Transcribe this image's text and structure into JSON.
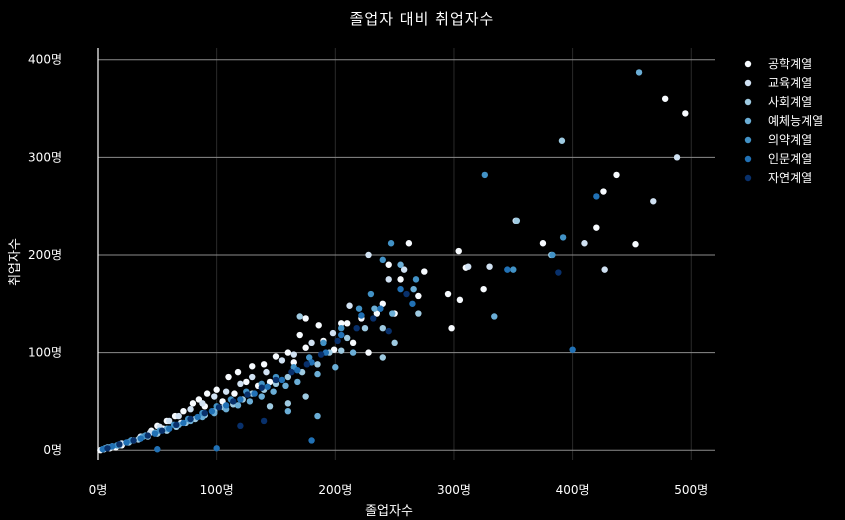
{
  "chart_data": {
    "type": "scatter",
    "title": "졸업자 대비 취업자수",
    "xlabel": "졸업자수",
    "ylabel": "취업자수",
    "xlim": [
      0,
      520
    ],
    "ylim": [
      -10,
      412
    ],
    "x_ticks": [
      {
        "value": 0,
        "label": "0명"
      },
      {
        "value": 100,
        "label": "100명"
      },
      {
        "value": 200,
        "label": "200명"
      },
      {
        "value": 300,
        "label": "300명"
      },
      {
        "value": 400,
        "label": "400명"
      },
      {
        "value": 500,
        "label": "500명"
      }
    ],
    "y_ticks": [
      {
        "value": 0,
        "label": "0명"
      },
      {
        "value": 100,
        "label": "100명"
      },
      {
        "value": 200,
        "label": "200명"
      },
      {
        "value": 300,
        "label": "300명"
      },
      {
        "value": 400,
        "label": "400명"
      }
    ],
    "grid": true,
    "legend_position": "top-right",
    "series": [
      {
        "name": "공학계열",
        "color": "#f7fbff",
        "points": [
          [
            495,
            345
          ],
          [
            478,
            360
          ],
          [
            437,
            282
          ],
          [
            426,
            265
          ],
          [
            420,
            228
          ],
          [
            453,
            211
          ],
          [
            375,
            212
          ],
          [
            304,
            204
          ],
          [
            310,
            187
          ],
          [
            262,
            212
          ],
          [
            275,
            183
          ],
          [
            270,
            158
          ],
          [
            295,
            160
          ],
          [
            305,
            154
          ],
          [
            325,
            165
          ],
          [
            298,
            125
          ],
          [
            240,
            150
          ],
          [
            235,
            140
          ],
          [
            222,
            135
          ],
          [
            250,
            140
          ],
          [
            215,
            110
          ],
          [
            199,
            103
          ],
          [
            186,
            128
          ],
          [
            170,
            118
          ],
          [
            160,
            100
          ],
          [
            150,
            96
          ],
          [
            140,
            88
          ],
          [
            130,
            86
          ],
          [
            125,
            70
          ],
          [
            118,
            80
          ],
          [
            110,
            75
          ],
          [
            100,
            62
          ],
          [
            92,
            58
          ],
          [
            85,
            52
          ],
          [
            80,
            48
          ],
          [
            72,
            40
          ],
          [
            65,
            35
          ],
          [
            58,
            30
          ],
          [
            50,
            25
          ],
          [
            45,
            20
          ],
          [
            40,
            15
          ],
          [
            35,
            12
          ],
          [
            30,
            10
          ],
          [
            25,
            8
          ],
          [
            20,
            5
          ],
          [
            15,
            3
          ],
          [
            10,
            2
          ],
          [
            5,
            1
          ],
          [
            2,
            0
          ],
          [
            55,
            22
          ],
          [
            70,
            28
          ],
          [
            90,
            45
          ],
          [
            105,
            50
          ],
          [
            115,
            58
          ],
          [
            135,
            66
          ],
          [
            145,
            70
          ],
          [
            165,
            90
          ],
          [
            175,
            105
          ],
          [
            190,
            112
          ],
          [
            210,
            130
          ],
          [
            228,
            100
          ],
          [
            245,
            190
          ],
          [
            255,
            175
          ],
          [
            175,
            135
          ],
          [
            205,
            130
          ]
        ]
      },
      {
        "name": "교육계열",
        "color": "#d0e1f2",
        "points": [
          [
            488,
            300
          ],
          [
            468,
            255
          ],
          [
            427,
            185
          ],
          [
            410,
            212
          ],
          [
            330,
            188
          ],
          [
            312,
            188
          ],
          [
            352,
            235
          ],
          [
            258,
            185
          ],
          [
            245,
            175
          ],
          [
            228,
            200
          ],
          [
            212,
            148
          ],
          [
            198,
            120
          ],
          [
            180,
            110
          ],
          [
            165,
            98
          ],
          [
            155,
            92
          ],
          [
            142,
            80
          ],
          [
            130,
            75
          ],
          [
            120,
            68
          ],
          [
            108,
            60
          ],
          [
            98,
            55
          ],
          [
            88,
            48
          ],
          [
            78,
            42
          ],
          [
            68,
            35
          ],
          [
            60,
            30
          ],
          [
            52,
            24
          ],
          [
            44,
            18
          ],
          [
            36,
            14
          ],
          [
            28,
            10
          ],
          [
            20,
            7
          ],
          [
            12,
            4
          ],
          [
            6,
            2
          ]
        ]
      },
      {
        "name": "사회계열",
        "color": "#9ecae1",
        "points": [
          [
            391,
            317
          ],
          [
            353,
            235
          ],
          [
            382,
            200
          ],
          [
            270,
            140
          ],
          [
            250,
            110
          ],
          [
            240,
            125
          ],
          [
            225,
            125
          ],
          [
            210,
            115
          ],
          [
            195,
            100
          ],
          [
            185,
            88
          ],
          [
            172,
            80
          ],
          [
            160,
            75
          ],
          [
            150,
            68
          ],
          [
            140,
            62
          ],
          [
            130,
            58
          ],
          [
            122,
            52
          ],
          [
            114,
            47
          ],
          [
            106,
            44
          ],
          [
            98,
            40
          ],
          [
            90,
            36
          ],
          [
            82,
            32
          ],
          [
            74,
            28
          ],
          [
            66,
            24
          ],
          [
            58,
            20
          ],
          [
            50,
            17
          ],
          [
            42,
            14
          ],
          [
            34,
            11
          ],
          [
            26,
            8
          ],
          [
            18,
            5
          ],
          [
            10,
            3
          ],
          [
            4,
            1
          ],
          [
            240,
            95
          ],
          [
            205,
            102
          ],
          [
            175,
            55
          ],
          [
            160,
            48
          ],
          [
            145,
            45
          ],
          [
            170,
            137
          ]
        ]
      },
      {
        "name": "예체능계열",
        "color": "#6baed6",
        "points": [
          [
            456,
            387
          ],
          [
            334,
            137
          ],
          [
            266,
            165
          ],
          [
            255,
            190
          ],
          [
            248,
            140
          ],
          [
            233,
            145
          ],
          [
            215,
            100
          ],
          [
            200,
            85
          ],
          [
            185,
            78
          ],
          [
            168,
            70
          ],
          [
            158,
            66
          ],
          [
            148,
            60
          ],
          [
            138,
            55
          ],
          [
            128,
            50
          ],
          [
            118,
            46
          ],
          [
            108,
            42
          ],
          [
            98,
            38
          ],
          [
            88,
            34
          ],
          [
            78,
            30
          ],
          [
            68,
            26
          ],
          [
            58,
            22
          ],
          [
            48,
            18
          ],
          [
            38,
            14
          ],
          [
            28,
            10
          ],
          [
            18,
            6
          ],
          [
            8,
            3
          ],
          [
            185,
            35
          ],
          [
            160,
            40
          ]
        ]
      },
      {
        "name": "의약계열",
        "color": "#4292c6",
        "points": [
          [
            326,
            282
          ],
          [
            392,
            218
          ],
          [
            383,
            200
          ],
          [
            350,
            185
          ],
          [
            268,
            175
          ],
          [
            247,
            212
          ],
          [
            240,
            195
          ],
          [
            230,
            160
          ],
          [
            220,
            145
          ],
          [
            205,
            125
          ],
          [
            190,
            110
          ],
          [
            178,
            95
          ],
          [
            165,
            85
          ],
          [
            150,
            75
          ],
          [
            138,
            68
          ],
          [
            125,
            60
          ],
          [
            112,
            52
          ],
          [
            100,
            45
          ],
          [
            88,
            38
          ],
          [
            76,
            32
          ],
          [
            64,
            26
          ],
          [
            52,
            20
          ],
          [
            40,
            15
          ],
          [
            28,
            10
          ],
          [
            16,
            5
          ],
          [
            6,
            2
          ]
        ]
      },
      {
        "name": "인문계열",
        "color": "#2171b5",
        "points": [
          [
            400,
            103
          ],
          [
            420,
            260
          ],
          [
            345,
            185
          ],
          [
            265,
            150
          ],
          [
            255,
            165
          ],
          [
            238,
            145
          ],
          [
            222,
            138
          ],
          [
            205,
            118
          ],
          [
            192,
            100
          ],
          [
            180,
            90
          ],
          [
            168,
            82
          ],
          [
            155,
            72
          ],
          [
            143,
            65
          ],
          [
            132,
            58
          ],
          [
            120,
            52
          ],
          [
            108,
            46
          ],
          [
            96,
            40
          ],
          [
            84,
            34
          ],
          [
            72,
            28
          ],
          [
            60,
            22
          ],
          [
            48,
            17
          ],
          [
            36,
            12
          ],
          [
            24,
            8
          ],
          [
            12,
            4
          ],
          [
            4,
            1
          ],
          [
            180,
            10
          ],
          [
            100,
            2
          ],
          [
            50,
            1
          ]
        ]
      },
      {
        "name": "자연계열",
        "color": "#08306b",
        "points": [
          [
            388,
            182
          ],
          [
            260,
            160
          ],
          [
            245,
            122
          ],
          [
            232,
            135
          ],
          [
            218,
            125
          ],
          [
            202,
            112
          ],
          [
            188,
            98
          ],
          [
            176,
            88
          ],
          [
            163,
            80
          ],
          [
            150,
            72
          ],
          [
            138,
            64
          ],
          [
            126,
            57
          ],
          [
            114,
            50
          ],
          [
            102,
            44
          ],
          [
            90,
            38
          ],
          [
            78,
            32
          ],
          [
            66,
            26
          ],
          [
            54,
            20
          ],
          [
            42,
            15
          ],
          [
            30,
            10
          ],
          [
            18,
            6
          ],
          [
            8,
            2
          ],
          [
            140,
            30
          ],
          [
            120,
            25
          ]
        ]
      }
    ]
  }
}
